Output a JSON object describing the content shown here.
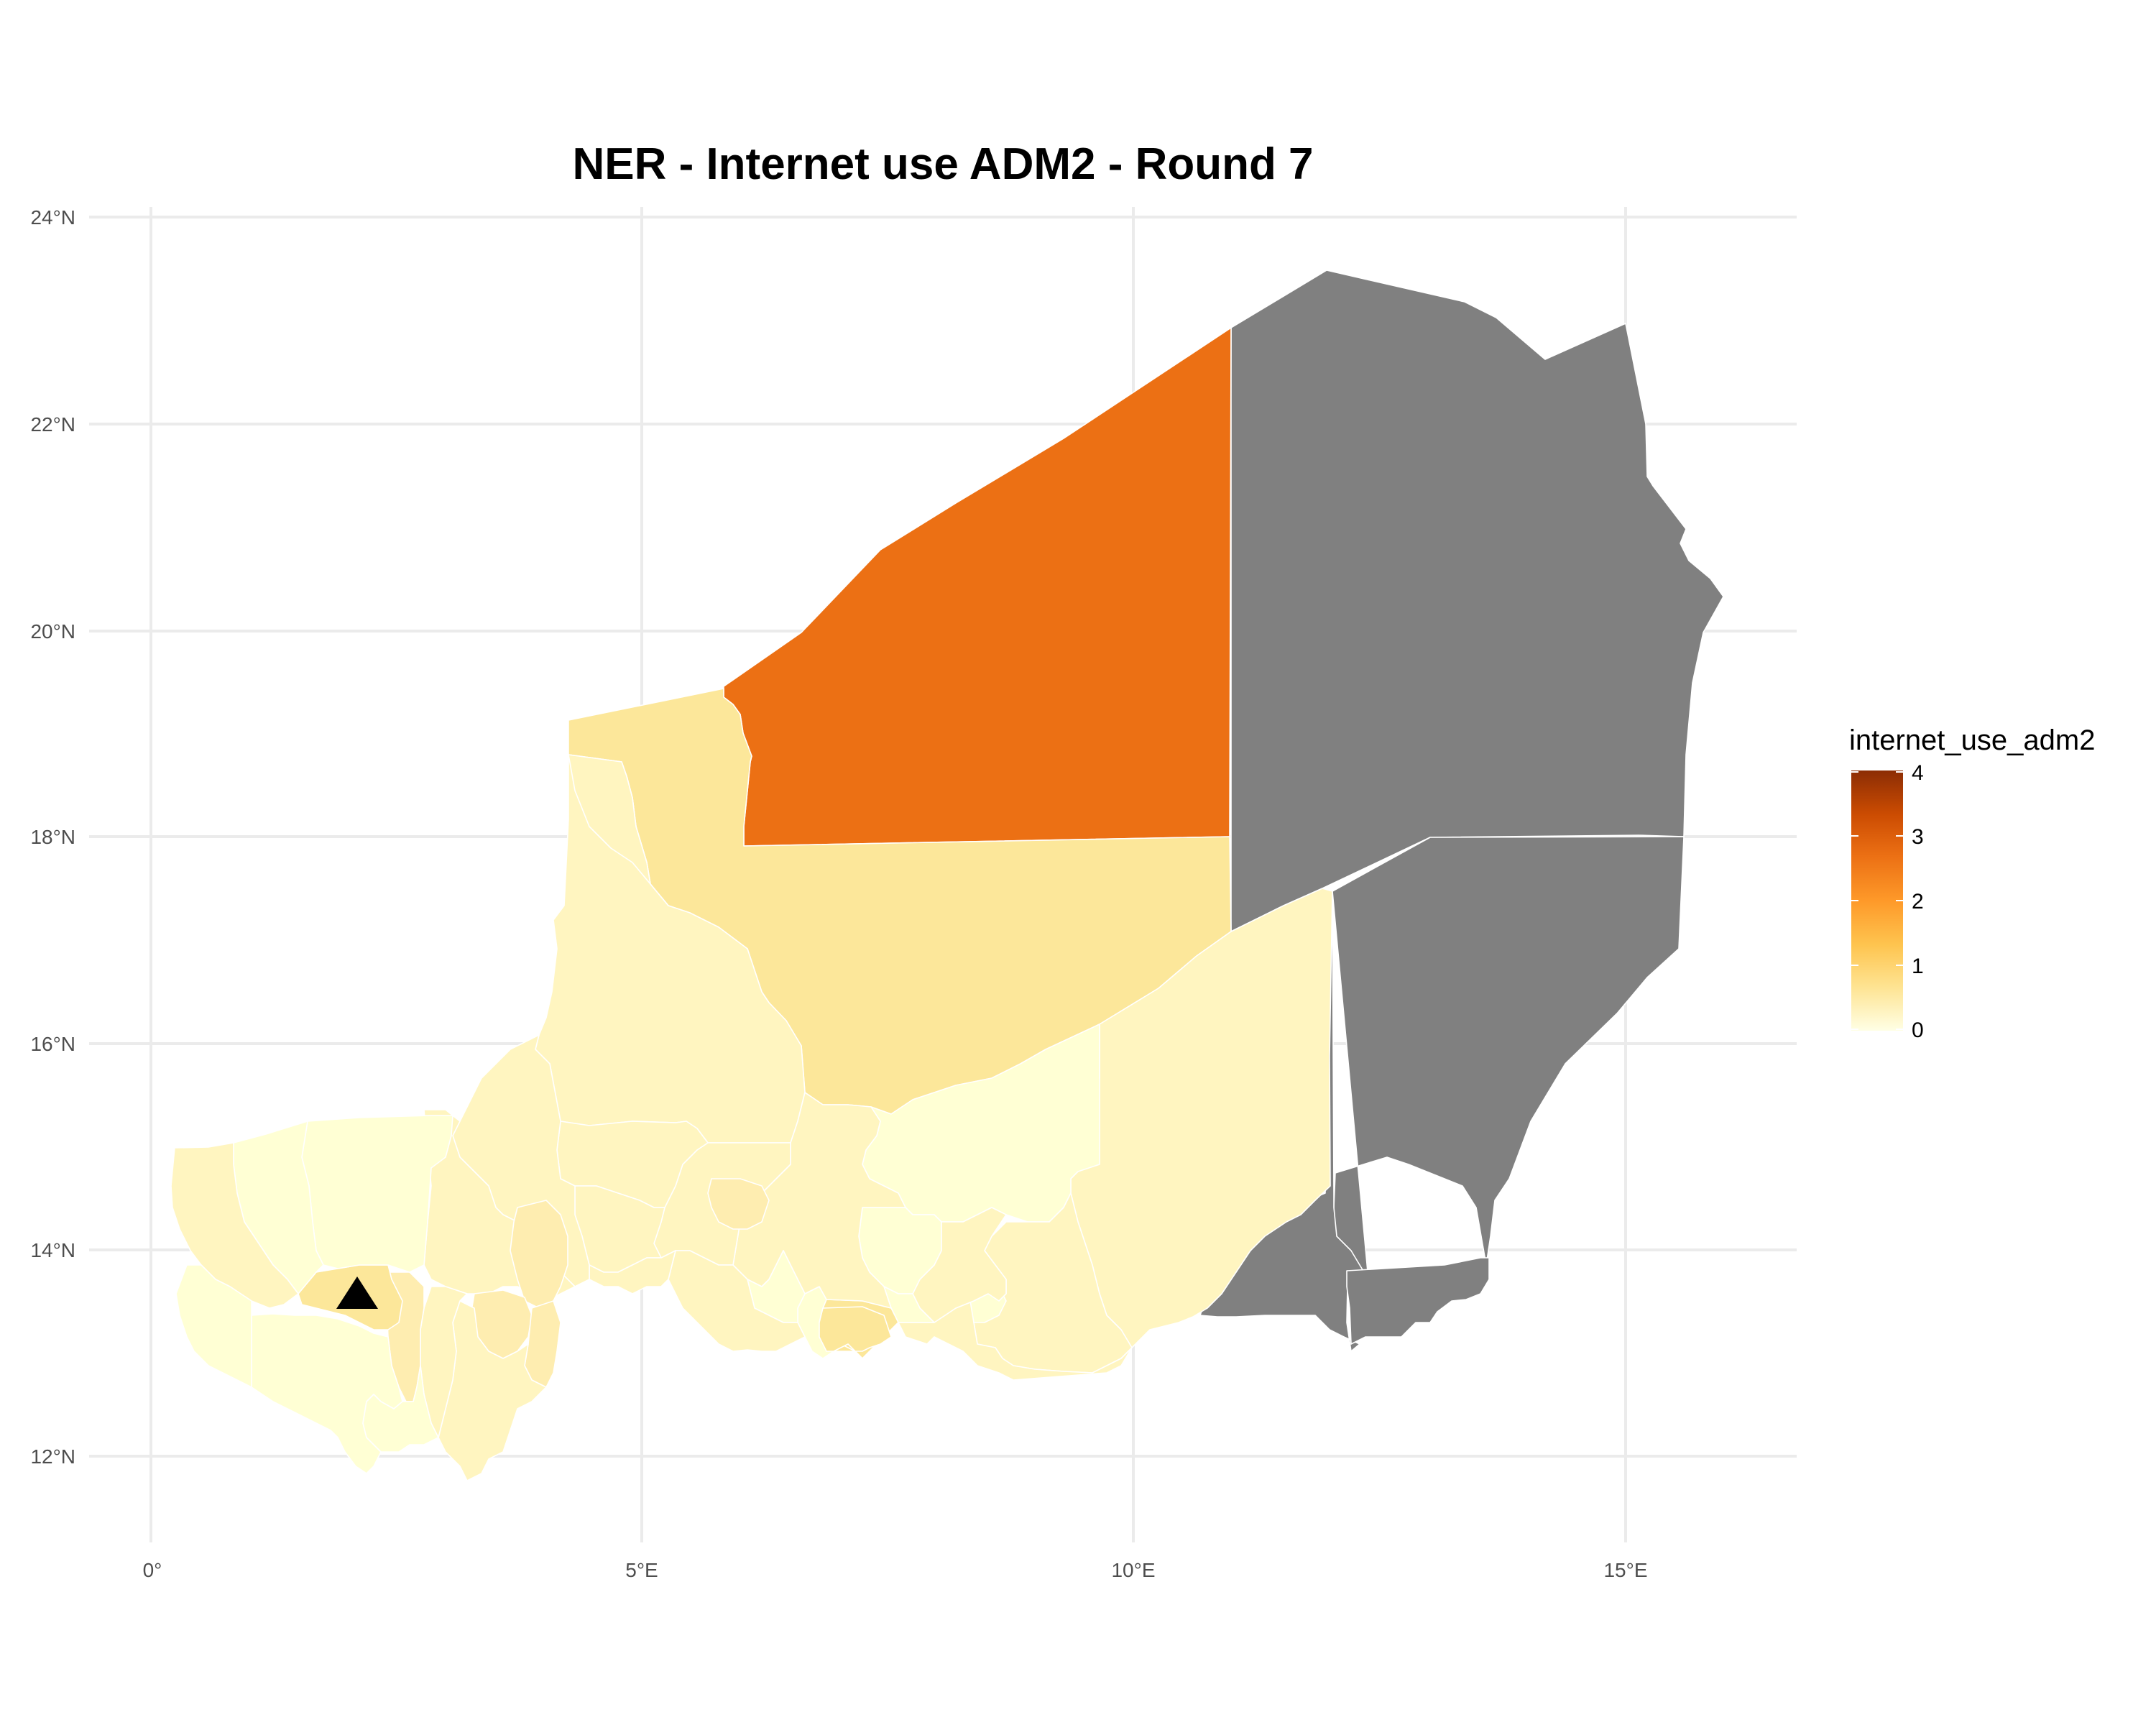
{
  "title": "NER - Internet use ADM2 - Round 7",
  "axes": {
    "x_ticks": [
      "0°",
      "5°E",
      "10°E",
      "15°E"
    ],
    "y_ticks": [
      "12°N",
      "14°N",
      "16°N",
      "18°N",
      "20°N",
      "22°N",
      "24°N"
    ]
  },
  "legend": {
    "title": "internet_use_adm2",
    "ticks": [
      "0",
      "1",
      "2",
      "3",
      "4"
    ],
    "range": [
      0,
      4
    ],
    "colors": [
      "#FFFFE5",
      "#FEE391",
      "#FEC44F",
      "#FE9929",
      "#EC7014",
      "#CC4C02",
      "#8C2D04"
    ]
  },
  "colors": {
    "missing": "#808080",
    "arlit": "#EC7014",
    "tchirozerine": "#FCE79A",
    "very_low": "#FFFFD4",
    "low": "#FFF5C0",
    "mid_low": "#FEEDB0"
  },
  "marker": {
    "icon": "triangle-capital-marker"
  },
  "chart_data": {
    "type": "choropleth",
    "title": "NER - Internet use ADM2 - Round 7",
    "xlabel": "",
    "ylabel": "",
    "x_range_deg": [
      -0.2,
      16.8
    ],
    "y_range_deg": [
      11.3,
      24.4
    ],
    "legend_variable": "internet_use_adm2",
    "scale_range": [
      0,
      4
    ],
    "regions": [
      {
        "id": "arlit",
        "value": 2.6
      },
      {
        "id": "bilma",
        "value": null
      },
      {
        "id": "north-east-lower",
        "value": null
      },
      {
        "id": "southeast-a",
        "value": null
      },
      {
        "id": "southeast-b",
        "value": null
      },
      {
        "id": "tchirozerine",
        "value": 1.1
      },
      {
        "id": "tassara",
        "value": 0.6
      },
      {
        "id": "tchintabaraden",
        "value": 0.5
      },
      {
        "id": "tanout",
        "value": 0.4
      },
      {
        "id": "dakoro-east",
        "value": 0.2
      },
      {
        "id": "ayorou",
        "value": 0.3
      },
      {
        "id": "ouallam",
        "value": 0.2
      },
      {
        "id": "filingue",
        "value": 0.4
      },
      {
        "id": "niamey",
        "value": 1.0
      },
      {
        "id": "dosso",
        "value": 0.8
      },
      {
        "id": "maradi",
        "value": 0.9
      }
    ],
    "marker": {
      "type": "triangle",
      "lon": 2.1,
      "lat": 13.5
    }
  }
}
